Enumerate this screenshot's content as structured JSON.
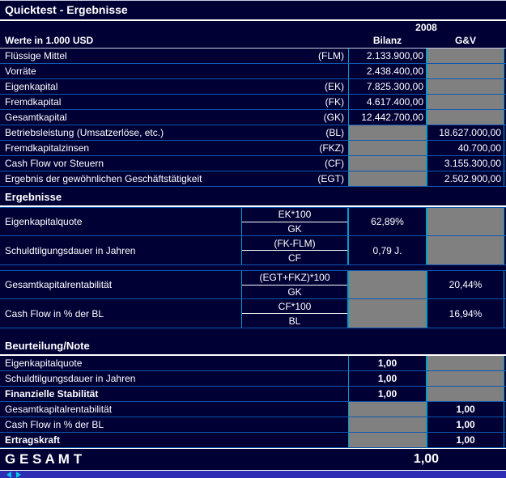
{
  "title": "Quicktest - Ergebnisse",
  "header": {
    "year": "2008",
    "unit_label": "Werte in 1.000 USD",
    "col_bilanz": "Bilanz",
    "col_gv": "G&V"
  },
  "werte": {
    "rows": [
      {
        "label": "Flüssige Mittel",
        "code": "(FLM)",
        "bilanz": "2.133.900,00",
        "gv": null
      },
      {
        "label": "Vorräte",
        "code": "",
        "bilanz": "2.438.400,00",
        "gv": null
      },
      {
        "label": "Eigenkapital",
        "code": "(EK)",
        "bilanz": "7.825.300,00",
        "gv": null
      },
      {
        "label": "Fremdkapital",
        "code": "(FK)",
        "bilanz": "4.617.400,00",
        "gv": null
      },
      {
        "label": "Gesamtkapital",
        "code": "(GK)",
        "bilanz": "12.442.700,00",
        "gv": null
      },
      {
        "label": "Betriebsleistung (Umsatzerlöse, etc.)",
        "code": "(BL)",
        "bilanz": null,
        "gv": "18.627.000,00"
      },
      {
        "label": "Fremdkapitalzinsen",
        "code": "(FKZ)",
        "bilanz": null,
        "gv": "40.700,00"
      },
      {
        "label": "Cash Flow vor Steuern",
        "code": "(CF)",
        "bilanz": null,
        "gv": "3.155.300,00"
      },
      {
        "label": "Ergebnis der gewöhnlichen Geschäftstätigkeit",
        "code": "(EGT)",
        "bilanz": null,
        "gv": "2.502.900,00"
      }
    ]
  },
  "ergebnisse": {
    "section_title": "Ergebnisse",
    "rows": [
      {
        "label": "Eigenkapitalquote",
        "formula_top": "EK*100",
        "formula_bottom": "GK",
        "bilanz": "62,89%",
        "gv": null
      },
      {
        "label": "Schuldtilgungsdauer in Jahren",
        "formula_top": "(FK-FLM)",
        "formula_bottom": "CF",
        "bilanz": "0,79 J.",
        "gv": null
      },
      {
        "label": "Gesamtkapitalrentabilität",
        "formula_top": "(EGT+FKZ)*100",
        "formula_bottom": "GK",
        "bilanz": null,
        "gv": "20,44%"
      },
      {
        "label": "Cash Flow in % der BL",
        "formula_top": "CF*100",
        "formula_bottom": "BL",
        "bilanz": null,
        "gv": "16,94%"
      }
    ]
  },
  "beurteilung": {
    "section_title": "Beurteilung/Note",
    "rows": [
      {
        "label": "Eigenkapitalquote",
        "bilanz": "1,00",
        "gv": null
      },
      {
        "label": "Schuldtilgungsdauer in Jahren",
        "bilanz": "1,00",
        "gv": null
      },
      {
        "label": "Finanzielle Stabilität",
        "bilanz": "1,00",
        "gv": null
      },
      {
        "label": "Gesamtkapitalrentabilität",
        "bilanz": null,
        "gv": "1,00"
      },
      {
        "label": "Cash Flow in % der BL",
        "bilanz": null,
        "gv": "1,00"
      },
      {
        "label": "Ertragskraft",
        "bilanz": null,
        "gv": "1,00"
      }
    ]
  },
  "gesamt": {
    "label": "G E S A M T",
    "value": "1,00"
  },
  "colors": {
    "background": "#000035",
    "grid_line": "#00a0c8",
    "row_line": "#0e57b0",
    "blocked_cell": "#808080",
    "text": "#ffffff",
    "section_underline": "#ffffff",
    "bottom_strip": "#2d2db4"
  }
}
